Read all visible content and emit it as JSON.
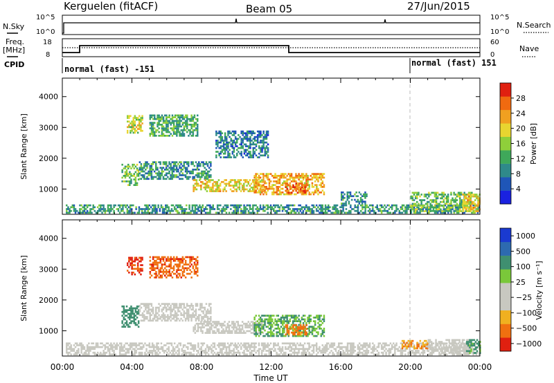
{
  "header": {
    "station": "Kerguelen (fitACF)",
    "beam": "Beam 05",
    "date": "27/Jun/2015"
  },
  "aux_panels": {
    "nsky_label": "N.Sky",
    "nsky_ticks": [
      "10^5",
      "10^0"
    ],
    "nsearch_label": "N.Search",
    "nsearch_ticks": [
      "10^5",
      "10^0"
    ],
    "freq_label_1": "Freq.",
    "freq_label_2": "[MHz]",
    "freq_ticks": [
      "18",
      "8"
    ],
    "nave_label": "Nave",
    "nave_ticks": [
      "60",
      "0"
    ],
    "cpid_label": "CPID",
    "cpid_segments": [
      "normal (fast) -151",
      "normal (fast) 151"
    ]
  },
  "time_axis": {
    "label": "Time UT",
    "ticks": [
      "00:00",
      "04:00",
      "08:00",
      "12:00",
      "16:00",
      "20:00",
      "00:00"
    ]
  },
  "chart_data": [
    {
      "type": "heatmap",
      "name": "power",
      "ylabel": "Slant Range [km]",
      "ylim": [
        180,
        4600
      ],
      "yticks": [
        "1000",
        "2000",
        "3000",
        "4000"
      ],
      "xlim_hours": [
        0,
        24
      ],
      "colorbar_label": "Power [dB]",
      "colorbar_ticks": [
        "4",
        "8",
        "12",
        "16",
        "20",
        "24",
        "28"
      ],
      "colorbar_colors": [
        "#1a22e0",
        "#1f56b8",
        "#2f8a8a",
        "#3fa85a",
        "#8fcf3a",
        "#e8d530",
        "#f0a020",
        "#f06a10",
        "#e02010"
      ],
      "regions": [
        {
          "t0": 0.2,
          "t1": 24,
          "r0": 200,
          "r1": 500,
          "v": 10
        },
        {
          "t0": 3.7,
          "t1": 4.6,
          "r0": 2800,
          "r1": 3400,
          "v": 18
        },
        {
          "t0": 5.0,
          "t1": 7.8,
          "r0": 2700,
          "r1": 3400,
          "v": 12
        },
        {
          "t0": 3.4,
          "t1": 4.4,
          "r0": 1100,
          "r1": 1800,
          "v": 14
        },
        {
          "t0": 4.4,
          "t1": 8.5,
          "r0": 1300,
          "r1": 1900,
          "v": 10
        },
        {
          "t0": 7.5,
          "t1": 11.5,
          "r0": 900,
          "r1": 1300,
          "v": 20
        },
        {
          "t0": 11.0,
          "t1": 15.0,
          "r0": 800,
          "r1": 1500,
          "v": 22
        },
        {
          "t0": 12.8,
          "t1": 14.0,
          "r0": 850,
          "r1": 1200,
          "v": 28
        },
        {
          "t0": 8.8,
          "t1": 11.8,
          "r0": 2000,
          "r1": 2900,
          "v": 8
        },
        {
          "t0": 16.0,
          "t1": 17.5,
          "r0": 500,
          "r1": 900,
          "v": 10
        },
        {
          "t0": 20.0,
          "t1": 23.5,
          "r0": 250,
          "r1": 900,
          "v": 14
        },
        {
          "t0": 23.0,
          "t1": 24.0,
          "r0": 250,
          "r1": 800,
          "v": 20
        }
      ]
    },
    {
      "type": "heatmap",
      "name": "velocity",
      "ylabel": "Slant Range [km]",
      "ylim": [
        180,
        4600
      ],
      "yticks": [
        "1000",
        "2000",
        "3000",
        "4000"
      ],
      "xlim_hours": [
        0,
        24
      ],
      "colorbar_label": "Velocity [m s⁻¹]",
      "colorbar_ticks": [
        "1000",
        "500",
        "100",
        "25",
        "−25",
        "−100",
        "−500",
        "−1000"
      ],
      "colorbar_colors": [
        "#1a3ad0",
        "#2d6ab0",
        "#3f8f70",
        "#7ac83a",
        "#c8c8c0",
        "#c8c8c0",
        "#f0b020",
        "#f07010",
        "#e02010"
      ],
      "regions": [
        {
          "t0": 0.2,
          "t1": 24,
          "r0": 200,
          "r1": 600,
          "v": 0
        },
        {
          "t0": 3.7,
          "t1": 4.6,
          "r0": 2800,
          "r1": 3400,
          "v": -600
        },
        {
          "t0": 5.0,
          "t1": 7.8,
          "r0": 2700,
          "r1": 3400,
          "v": -400
        },
        {
          "t0": 3.4,
          "t1": 4.4,
          "r0": 1100,
          "r1": 1800,
          "v": 100
        },
        {
          "t0": 4.4,
          "t1": 8.5,
          "r0": 1300,
          "r1": 1900,
          "v": 0
        },
        {
          "t0": 7.5,
          "t1": 11.5,
          "r0": 900,
          "r1": 1300,
          "v": 0
        },
        {
          "t0": 11.0,
          "t1": 15.0,
          "r0": 800,
          "r1": 1500,
          "v": 60
        },
        {
          "t0": 12.8,
          "t1": 14.0,
          "r0": 850,
          "r1": 1200,
          "v": -150
        },
        {
          "t0": 19.5,
          "t1": 21.0,
          "r0": 400,
          "r1": 700,
          "v": -100
        },
        {
          "t0": 21.0,
          "t1": 23.5,
          "r0": 250,
          "r1": 700,
          "v": 0
        },
        {
          "t0": 23.2,
          "t1": 24.0,
          "r0": 250,
          "r1": 700,
          "v": 80
        }
      ]
    }
  ]
}
